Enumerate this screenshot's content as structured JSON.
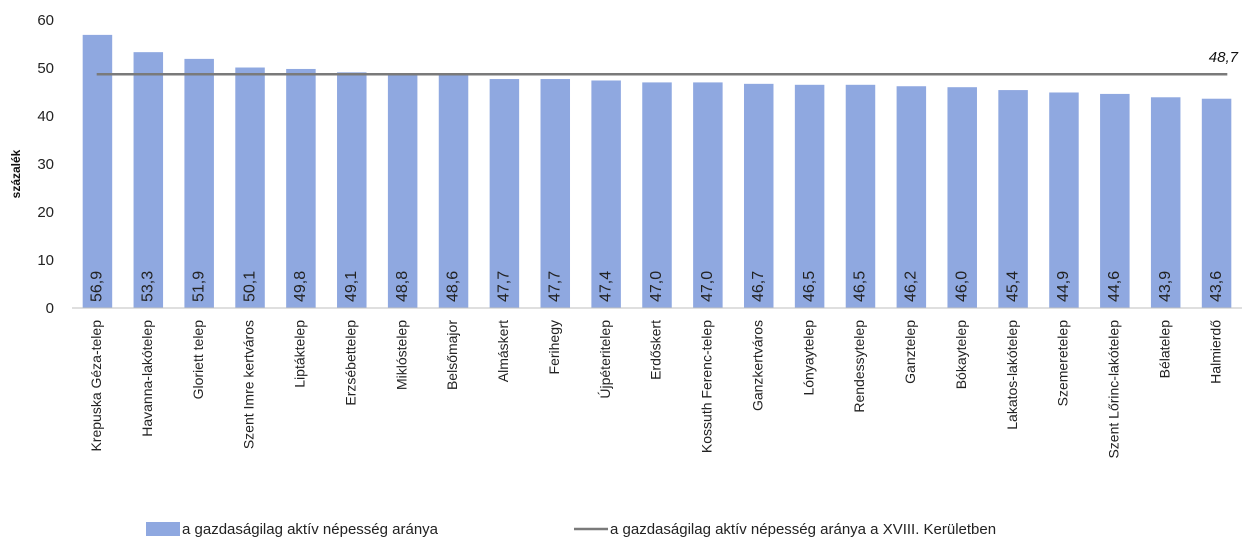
{
  "chart_data": {
    "type": "bar",
    "ylabel": "százalék",
    "ylim": [
      0,
      60
    ],
    "yticks": [
      "0",
      "10",
      "20",
      "30",
      "40",
      "50",
      "60"
    ],
    "categories": [
      "Krepuska Géza-telep",
      "Havanna-lakótelep",
      "Gloriett telep",
      "Szent Imre kertváros",
      "Liptáktelep",
      "Erzsébettelep",
      "Miklóstelep",
      "Belsőmajor",
      "Almáskert",
      "Ferihegy",
      "Újpéteritelep",
      "Erdőskert",
      "Kossuth Ferenc-telep",
      "Ganzkertváros",
      "Lónyaytelep",
      "Rendessytelep",
      "Ganztelep",
      "Bókaytelep",
      "Lakatos-lakótelep",
      "Szemeretelep",
      "Szent Lőrinc-lakótelep",
      "Bélatelep",
      "Halmierdő"
    ],
    "values": [
      56.9,
      53.3,
      51.9,
      50.1,
      49.8,
      49.1,
      48.8,
      48.6,
      47.7,
      47.7,
      47.4,
      47.0,
      47.0,
      46.7,
      46.5,
      46.5,
      46.2,
      46.0,
      45.4,
      44.9,
      44.6,
      43.9,
      43.6
    ],
    "value_labels": [
      "56,9",
      "53,3",
      "51,9",
      "50,1",
      "49,8",
      "49,1",
      "48,8",
      "48,6",
      "47,7",
      "47,7",
      "47,4",
      "47,0",
      "47,0",
      "46,7",
      "46,5",
      "46,5",
      "46,2",
      "46,0",
      "45,4",
      "44,9",
      "44,6",
      "43,9",
      "43,6"
    ],
    "reference_line": {
      "value": 48.7,
      "label": "48,7"
    },
    "legend": {
      "placement": "bottom",
      "bar_series": "a gazdaságilag aktív népesség aránya",
      "line_series": "a gazdaságilag aktív népesség aránya a XVIII. Kerületben"
    },
    "grid": false,
    "colors": {
      "bar": "#8fa8e0",
      "line": "#7a7a7a"
    }
  }
}
